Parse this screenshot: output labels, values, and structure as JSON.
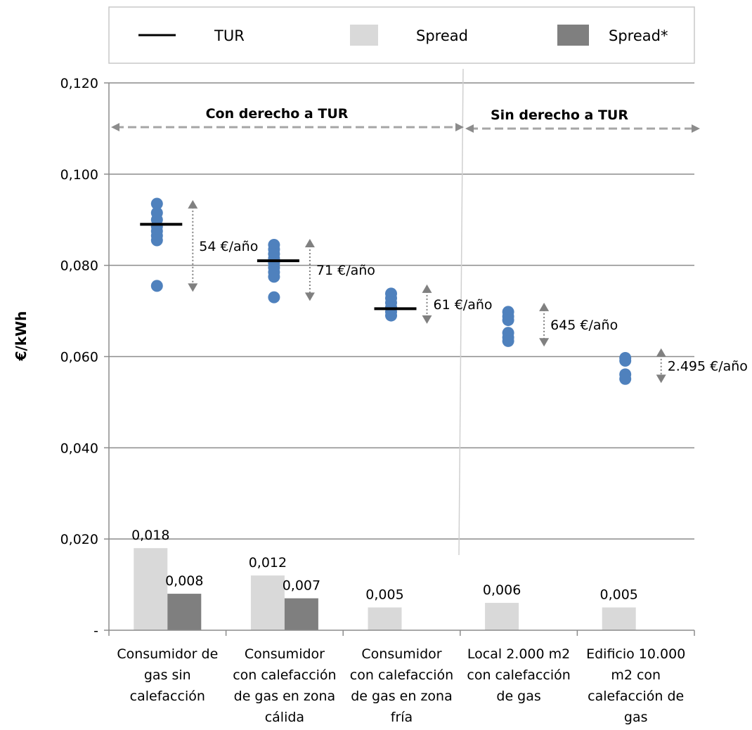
{
  "chart_data": {
    "type": "bar",
    "ylabel": "€/kWh",
    "ylim": [
      0,
      0.12
    ],
    "yticks": [
      "-",
      "0,020",
      "0,040",
      "0,060",
      "0,080",
      "0,100",
      "0,120"
    ],
    "grid": true,
    "legend": {
      "placement": "top",
      "entries": [
        {
          "label": "TUR",
          "kind": "line",
          "color": "#000000"
        },
        {
          "label": "Spread",
          "kind": "box",
          "color": "#d9d9d9"
        },
        {
          "label": "Spread*",
          "kind": "box",
          "color": "#7f7f7f"
        }
      ]
    },
    "regions": [
      {
        "label": "Con derecho a TUR",
        "from": 0,
        "to": 3
      },
      {
        "label": "Sin derecho a TUR",
        "from": 3,
        "to": 5
      }
    ],
    "categories": [
      [
        "Consumidor de",
        "gas sin",
        "calefacción"
      ],
      [
        "Consumidor",
        "con calefacción",
        "de gas en zona",
        "cálida"
      ],
      [
        "Consumidor",
        "con calefacción",
        "de gas en zona",
        "fría"
      ],
      [
        "Local 2.000 m2",
        "con calefacción",
        "de gas"
      ],
      [
        "Edificio 10.000",
        "m2 con",
        "calefacción de",
        "gas"
      ]
    ],
    "series": [
      {
        "name": "Spread",
        "color": "#d9d9d9",
        "values": [
          0.018,
          0.012,
          0.005,
          0.006,
          0.005
        ],
        "labels": [
          "0,018",
          "0,012",
          "0,005",
          "0,006",
          "0,005"
        ]
      },
      {
        "name": "Spread*",
        "color": "#7f7f7f",
        "values": [
          0.008,
          0.007,
          null,
          null,
          null
        ],
        "labels": [
          "0,008",
          "0,007",
          "",
          "",
          ""
        ]
      }
    ],
    "tur": [
      0.089,
      0.081,
      0.0705,
      null,
      null
    ],
    "offers": {
      "color": "#4f81bd",
      "points": [
        [
          0.0935,
          0.0915,
          0.09,
          0.0885,
          0.0875,
          0.0865,
          0.0855,
          0.0755
        ],
        [
          0.0845,
          0.0835,
          0.0825,
          0.0815,
          0.0805,
          0.0795,
          0.0785,
          0.0775,
          0.073
        ],
        [
          0.0738,
          0.0728,
          0.0718,
          0.0708,
          0.0698,
          0.069
        ],
        [
          0.0698,
          0.0688,
          0.068,
          0.0652,
          0.0642,
          0.0634
        ],
        [
          0.0597,
          0.0591,
          0.0561,
          0.0551
        ]
      ]
    },
    "ranges": [
      {
        "top": 0.094,
        "bottom": 0.0745,
        "label": "54 €/año"
      },
      {
        "top": 0.0855,
        "bottom": 0.0725,
        "label": "71 €/año"
      },
      {
        "top": 0.0755,
        "bottom": 0.0675,
        "label": "61 €/año"
      },
      {
        "top": 0.0715,
        "bottom": 0.0625,
        "label": "645 €/año"
      },
      {
        "top": 0.0615,
        "bottom": 0.0545,
        "label": "2.495 €/año"
      }
    ]
  }
}
